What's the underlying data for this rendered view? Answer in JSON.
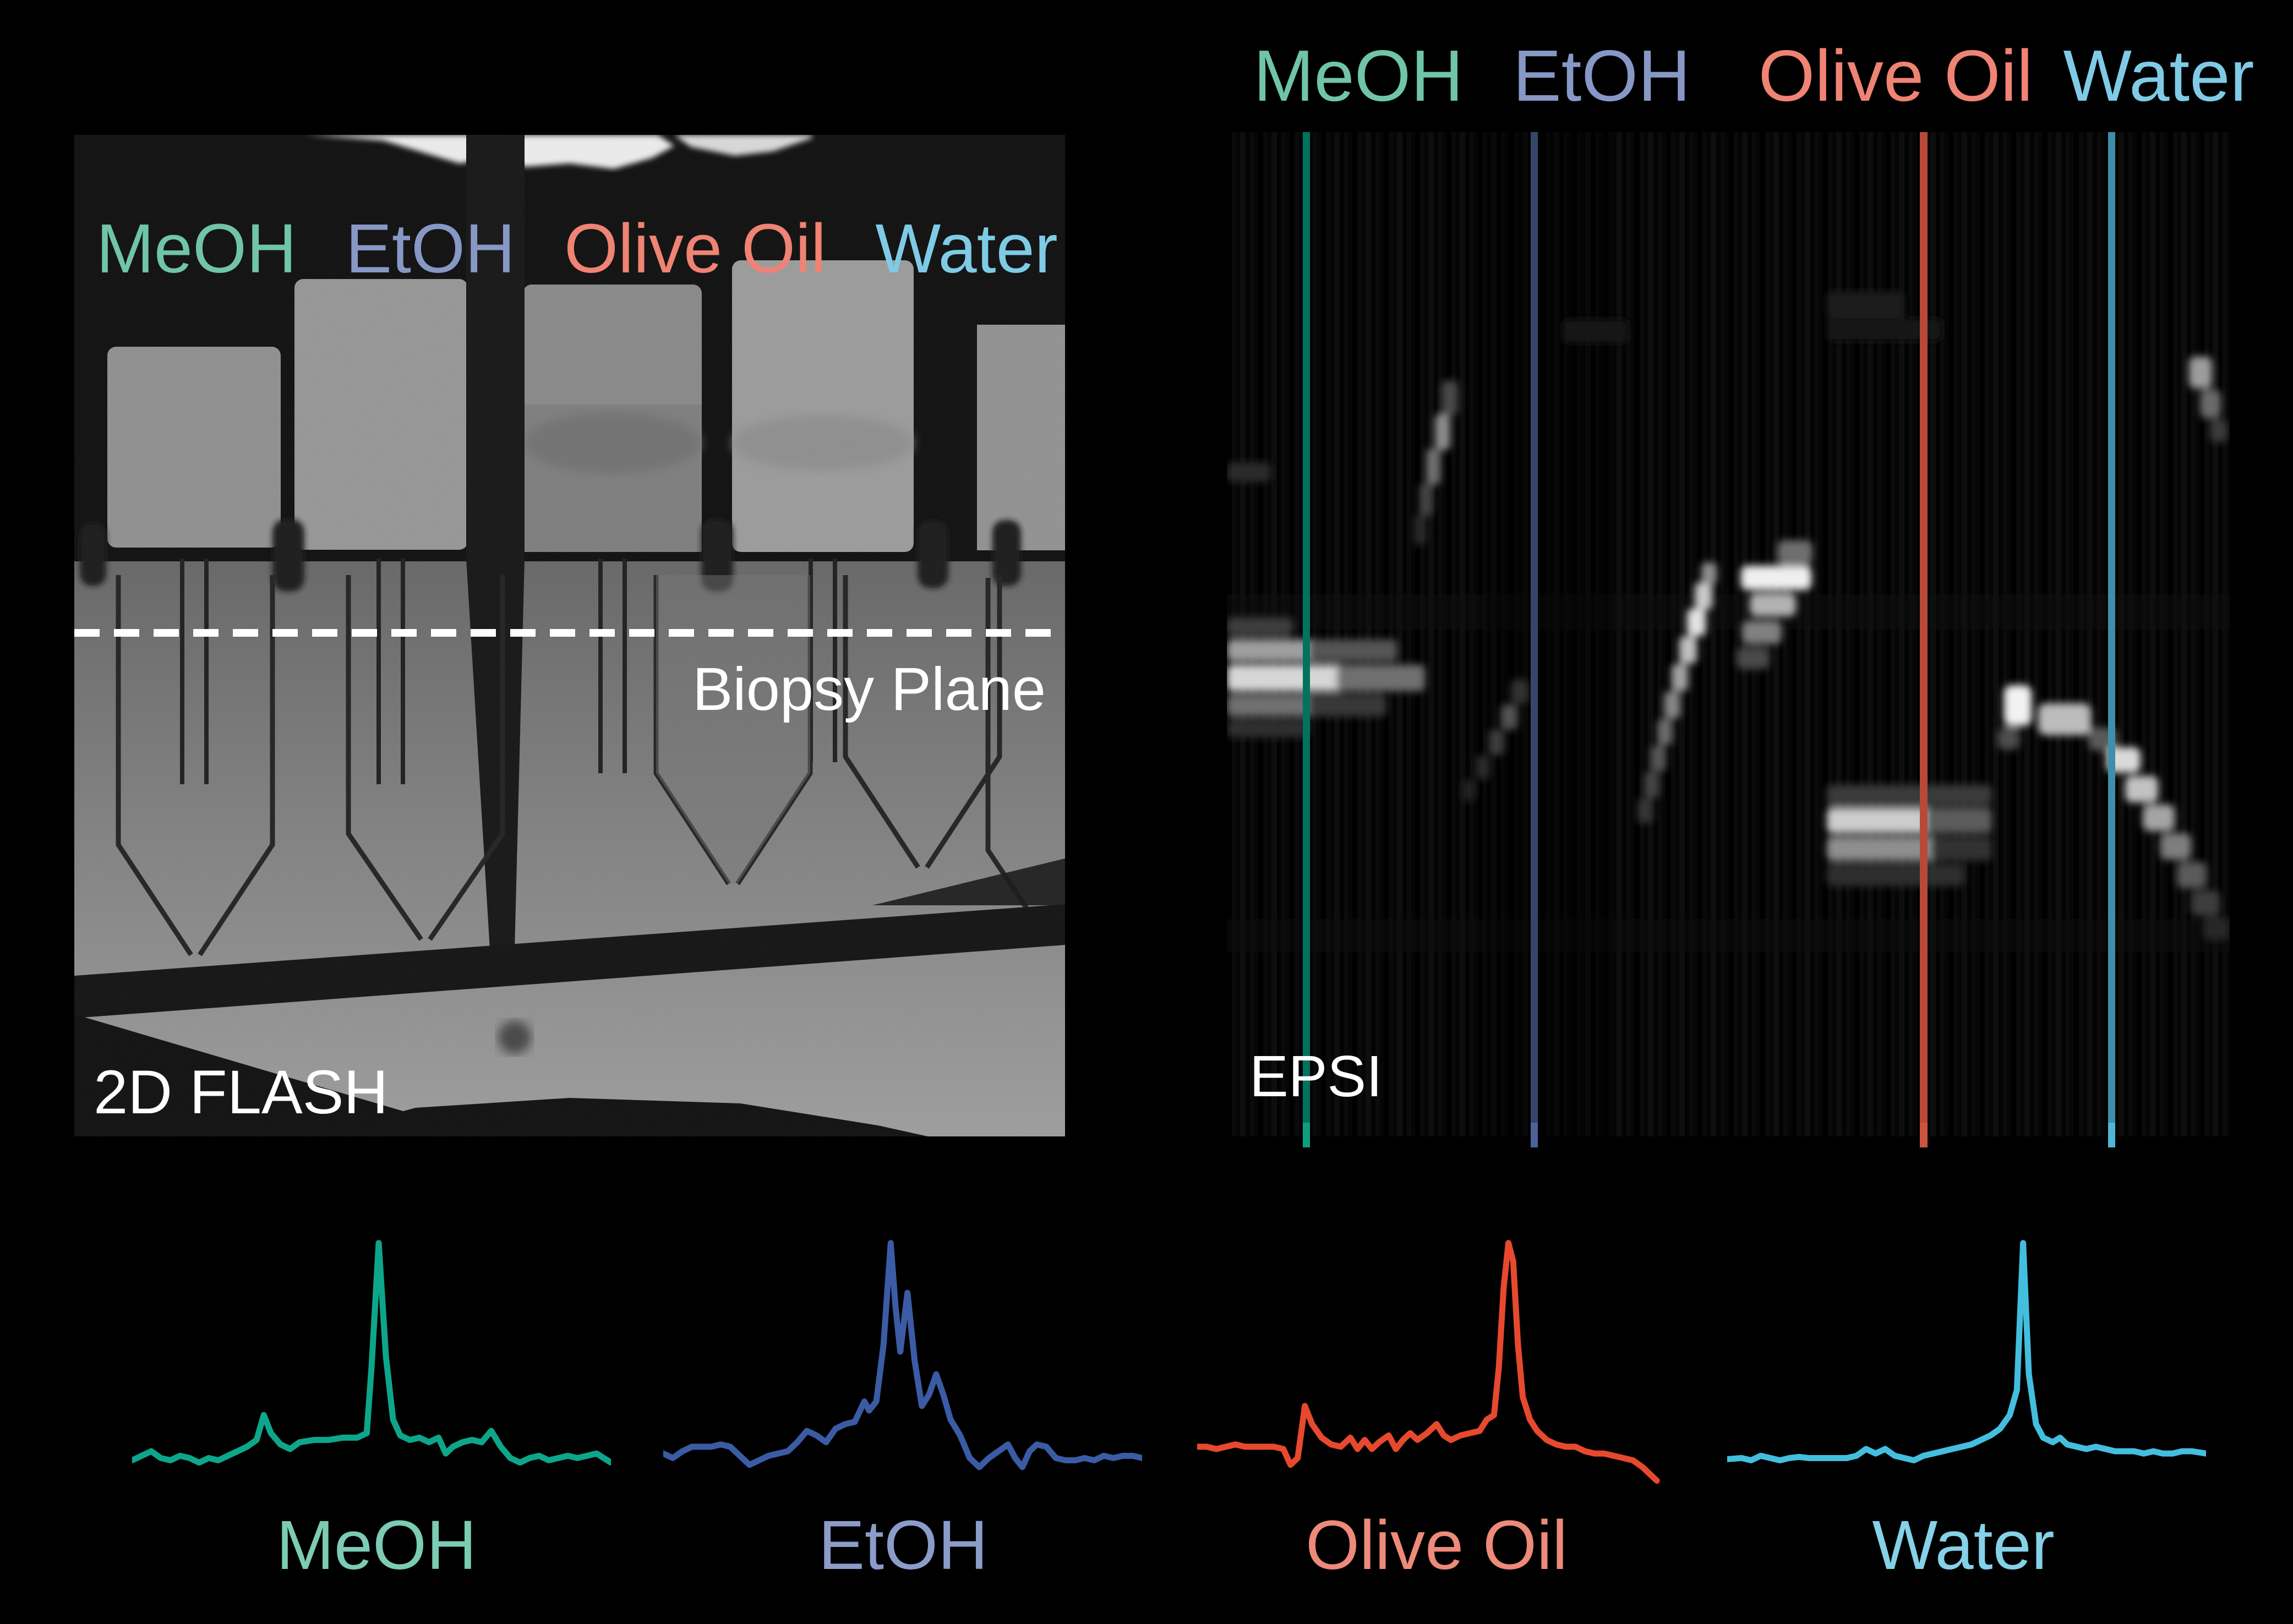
{
  "figure": {
    "flash_panel": {
      "modality_label": "2D FLASH",
      "biopsy_plane_label": "Biopsy Plane",
      "tube_labels": [
        {
          "text": "MeOH",
          "color": "#70c4aa"
        },
        {
          "text": "EtOH",
          "color": "#8798c6"
        },
        {
          "text": "Olive Oil",
          "color": "#ef8374"
        },
        {
          "text": "Water",
          "color": "#7fcbe6"
        }
      ]
    },
    "epsi_panel": {
      "modality_label": "EPSI",
      "column_labels": [
        {
          "text": "MeOH",
          "color": "#70c4aa"
        },
        {
          "text": "EtOH",
          "color": "#8798c6"
        },
        {
          "text": "Olive Oil",
          "color": "#ef8374"
        },
        {
          "text": "Water",
          "color": "#7fcbe6"
        }
      ],
      "guide_lines": [
        {
          "name": "meoh",
          "color": "#00735f"
        },
        {
          "name": "etoh",
          "color": "#36456a"
        },
        {
          "name": "olive-oil",
          "color": "#b84936"
        },
        {
          "name": "water",
          "color": "#3e8fa9"
        }
      ]
    }
  },
  "chart_data": {
    "type": "line",
    "title": "",
    "xlabel": "",
    "ylabel": "",
    "grid": false,
    "note": "Four spectra traces; x normalized 0-100 across each trace, y normalized 0-1 to tallest peak",
    "charts": [
      {
        "name": "meoh",
        "label": "MeOH",
        "line_color": "#0ea68b",
        "label_color": "#7ccbb4",
        "points": [
          [
            0,
            0.04
          ],
          [
            2,
            0.06
          ],
          [
            4,
            0.08
          ],
          [
            6,
            0.05
          ],
          [
            8,
            0.04
          ],
          [
            10,
            0.06
          ],
          [
            12,
            0.05
          ],
          [
            14,
            0.03
          ],
          [
            16,
            0.05
          ],
          [
            18,
            0.04
          ],
          [
            20,
            0.06
          ],
          [
            22,
            0.08
          ],
          [
            24,
            0.1
          ],
          [
            26,
            0.13
          ],
          [
            27.5,
            0.24
          ],
          [
            29,
            0.16
          ],
          [
            31,
            0.11
          ],
          [
            33,
            0.09
          ],
          [
            35,
            0.12
          ],
          [
            38,
            0.13
          ],
          [
            41,
            0.13
          ],
          [
            44,
            0.14
          ],
          [
            47,
            0.14
          ],
          [
            49,
            0.16
          ],
          [
            50,
            0.45
          ],
          [
            51.5,
            1.0
          ],
          [
            53,
            0.5
          ],
          [
            54.5,
            0.22
          ],
          [
            56,
            0.15
          ],
          [
            58,
            0.13
          ],
          [
            60,
            0.14
          ],
          [
            62,
            0.12
          ],
          [
            64,
            0.14
          ],
          [
            65.5,
            0.07
          ],
          [
            67,
            0.1
          ],
          [
            69,
            0.12
          ],
          [
            71,
            0.13
          ],
          [
            73,
            0.12
          ],
          [
            75,
            0.17
          ],
          [
            77,
            0.1
          ],
          [
            79,
            0.05
          ],
          [
            81,
            0.03
          ],
          [
            83,
            0.05
          ],
          [
            85,
            0.06
          ],
          [
            87,
            0.04
          ],
          [
            89,
            0.05
          ],
          [
            91,
            0.06
          ],
          [
            93,
            0.05
          ],
          [
            95,
            0.06
          ],
          [
            97,
            0.07
          ],
          [
            100,
            0.03
          ]
        ]
      },
      {
        "name": "etoh",
        "label": "EtOH",
        "line_color": "#3b5ba5",
        "label_color": "#8b9cc9",
        "points": [
          [
            0,
            0.07
          ],
          [
            2,
            0.05
          ],
          [
            4,
            0.08
          ],
          [
            6,
            0.1
          ],
          [
            8,
            0.1
          ],
          [
            10,
            0.1
          ],
          [
            12,
            0.11
          ],
          [
            14,
            0.1
          ],
          [
            16,
            0.06
          ],
          [
            18,
            0.02
          ],
          [
            20,
            0.04
          ],
          [
            22,
            0.06
          ],
          [
            24,
            0.07
          ],
          [
            26,
            0.08
          ],
          [
            28,
            0.12
          ],
          [
            30,
            0.17
          ],
          [
            32,
            0.15
          ],
          [
            34,
            0.12
          ],
          [
            36,
            0.18
          ],
          [
            38,
            0.2
          ],
          [
            40,
            0.21
          ],
          [
            42,
            0.3
          ],
          [
            43,
            0.26
          ],
          [
            44.5,
            0.3
          ],
          [
            46,
            0.55
          ],
          [
            47.5,
            1.0
          ],
          [
            48.5,
            0.72
          ],
          [
            49.5,
            0.52
          ],
          [
            51,
            0.78
          ],
          [
            52.5,
            0.48
          ],
          [
            54,
            0.28
          ],
          [
            55.5,
            0.33
          ],
          [
            57,
            0.42
          ],
          [
            58.5,
            0.33
          ],
          [
            60,
            0.22
          ],
          [
            62,
            0.15
          ],
          [
            64,
            0.05
          ],
          [
            66,
            0.01
          ],
          [
            68,
            0.05
          ],
          [
            70,
            0.08
          ],
          [
            72,
            0.11
          ],
          [
            73.5,
            0.05
          ],
          [
            75,
            0.01
          ],
          [
            76.5,
            0.08
          ],
          [
            78,
            0.11
          ],
          [
            80,
            0.1
          ],
          [
            82,
            0.05
          ],
          [
            84,
            0.04
          ],
          [
            86,
            0.04
          ],
          [
            88,
            0.05
          ],
          [
            90,
            0.04
          ],
          [
            92,
            0.06
          ],
          [
            94,
            0.05
          ],
          [
            96,
            0.06
          ],
          [
            98,
            0.06
          ],
          [
            100,
            0.05
          ]
        ]
      },
      {
        "name": "olive-oil",
        "label": "Olive Oil",
        "line_color": "#e7492e",
        "label_color": "#ee8a79",
        "points": [
          [
            0,
            0.1
          ],
          [
            2,
            0.1
          ],
          [
            4,
            0.09
          ],
          [
            6,
            0.1
          ],
          [
            8,
            0.11
          ],
          [
            10,
            0.1
          ],
          [
            12,
            0.1
          ],
          [
            14,
            0.1
          ],
          [
            16,
            0.1
          ],
          [
            18,
            0.09
          ],
          [
            19.5,
            0.02
          ],
          [
            21,
            0.05
          ],
          [
            22.5,
            0.28
          ],
          [
            24,
            0.2
          ],
          [
            26,
            0.14
          ],
          [
            28,
            0.11
          ],
          [
            30,
            0.1
          ],
          [
            32,
            0.14
          ],
          [
            33.5,
            0.09
          ],
          [
            35,
            0.13
          ],
          [
            36.5,
            0.09
          ],
          [
            38,
            0.12
          ],
          [
            40,
            0.15
          ],
          [
            41.5,
            0.09
          ],
          [
            43,
            0.13
          ],
          [
            44.5,
            0.16
          ],
          [
            46,
            0.13
          ],
          [
            48,
            0.16
          ],
          [
            50,
            0.2
          ],
          [
            51.5,
            0.15
          ],
          [
            53,
            0.13
          ],
          [
            55,
            0.15
          ],
          [
            57,
            0.16
          ],
          [
            59,
            0.17
          ],
          [
            60.5,
            0.22
          ],
          [
            62,
            0.24
          ],
          [
            63,
            0.45
          ],
          [
            64,
            0.8
          ],
          [
            65,
            1.0
          ],
          [
            66,
            0.92
          ],
          [
            67,
            0.55
          ],
          [
            68,
            0.32
          ],
          [
            69.5,
            0.22
          ],
          [
            71,
            0.17
          ],
          [
            73,
            0.13
          ],
          [
            75,
            0.11
          ],
          [
            77,
            0.1
          ],
          [
            79,
            0.1
          ],
          [
            81,
            0.08
          ],
          [
            83,
            0.07
          ],
          [
            85,
            0.07
          ],
          [
            87,
            0.06
          ],
          [
            89,
            0.05
          ],
          [
            91,
            0.04
          ],
          [
            93,
            0.01
          ],
          [
            95,
            -0.03
          ],
          [
            96,
            -0.05
          ]
        ]
      },
      {
        "name": "water",
        "label": "Water",
        "line_color": "#44bede",
        "label_color": "#85d1e8",
        "points": [
          [
            0,
            0.045
          ],
          [
            3,
            0.05
          ],
          [
            5,
            0.04
          ],
          [
            7,
            0.06
          ],
          [
            9,
            0.05
          ],
          [
            11,
            0.04
          ],
          [
            13,
            0.05
          ],
          [
            15,
            0.055
          ],
          [
            17,
            0.05
          ],
          [
            19,
            0.05
          ],
          [
            21,
            0.05
          ],
          [
            23,
            0.05
          ],
          [
            25,
            0.05
          ],
          [
            27,
            0.06
          ],
          [
            29,
            0.09
          ],
          [
            31,
            0.07
          ],
          [
            33,
            0.09
          ],
          [
            35,
            0.06
          ],
          [
            37,
            0.05
          ],
          [
            39,
            0.04
          ],
          [
            41,
            0.06
          ],
          [
            43,
            0.07
          ],
          [
            45,
            0.08
          ],
          [
            47,
            0.09
          ],
          [
            49,
            0.1
          ],
          [
            51,
            0.11
          ],
          [
            53,
            0.13
          ],
          [
            55,
            0.15
          ],
          [
            57,
            0.18
          ],
          [
            59,
            0.24
          ],
          [
            60.5,
            0.35
          ],
          [
            61.8,
            1.0
          ],
          [
            63,
            0.42
          ],
          [
            64.5,
            0.2
          ],
          [
            66,
            0.14
          ],
          [
            68,
            0.12
          ],
          [
            69.5,
            0.14
          ],
          [
            71,
            0.11
          ],
          [
            73,
            0.1
          ],
          [
            75,
            0.09
          ],
          [
            77,
            0.1
          ],
          [
            79,
            0.09
          ],
          [
            81,
            0.08
          ],
          [
            83,
            0.08
          ],
          [
            85,
            0.08
          ],
          [
            87,
            0.07
          ],
          [
            89,
            0.08
          ],
          [
            91,
            0.07
          ],
          [
            93,
            0.07
          ],
          [
            95,
            0.08
          ],
          [
            97,
            0.08
          ],
          [
            100,
            0.07
          ]
        ]
      }
    ]
  }
}
